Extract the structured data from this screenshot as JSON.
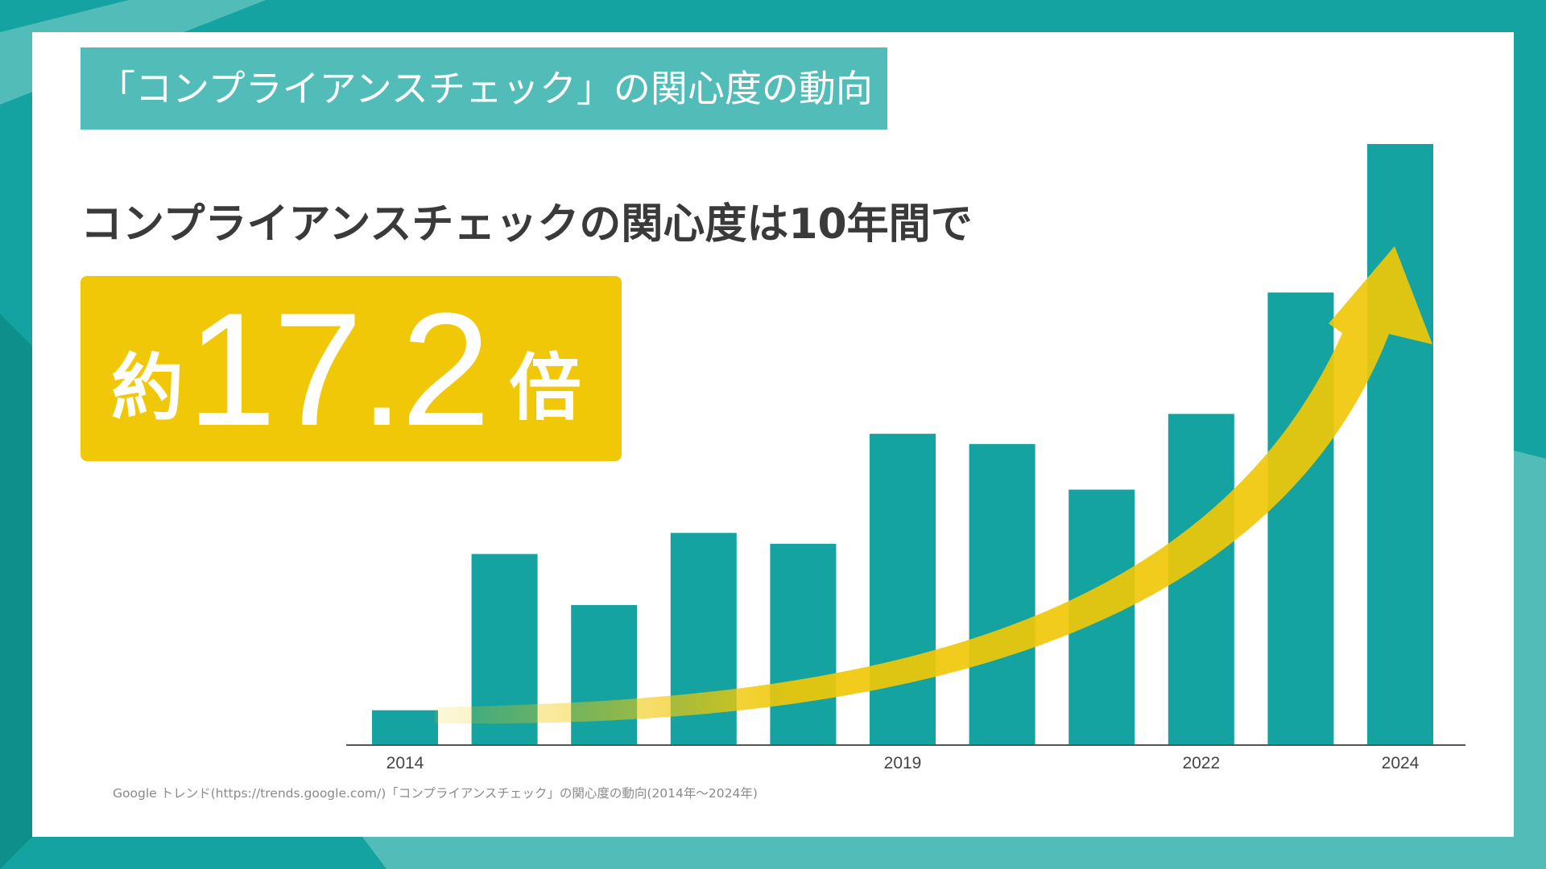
{
  "title_band": "「コンプライアンスチェック」の関心度の動向",
  "headline": "コンプライアンスチェックの関心度は10年間で",
  "badge": {
    "prefix": "約",
    "value": "17.2",
    "suffix": "倍"
  },
  "source": "Google トレンド(https://trends.google.com/)「コンプライアンスチェック」の関心度の動向(2014年〜2024年)",
  "colors": {
    "background": "#14a3a0",
    "bar": "#14a3a0",
    "title_band": "#52bdb8",
    "accent_yellow": "#f0c808",
    "text_dark": "#3a3a3a"
  },
  "chart_data": {
    "type": "bar",
    "x": [
      "2014",
      "2015",
      "2016",
      "2017",
      "2018",
      "2019",
      "2020",
      "2021",
      "2022",
      "2023",
      "2024"
    ],
    "values": [
      5.8,
      31.8,
      23.3,
      35.3,
      33.5,
      51.8,
      50.1,
      42.5,
      55.1,
      75.3,
      100
    ],
    "x_tick_labels": [
      "2014",
      "",
      "",
      "",
      "",
      "2019",
      "",
      "",
      "2022",
      "",
      "2024"
    ],
    "ylim": [
      0,
      100
    ],
    "grid": false,
    "legend": "none",
    "annotation": "yellow curved arrow rising toward 2024"
  }
}
